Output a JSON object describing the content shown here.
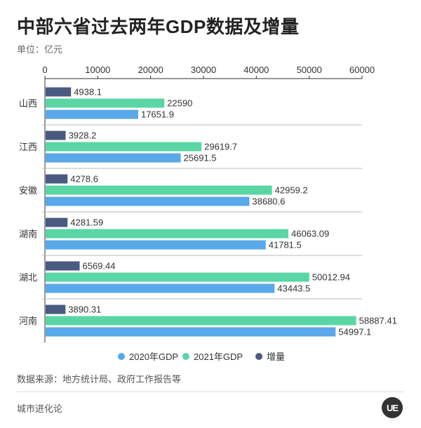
{
  "header": {
    "title": "中部六省过去两年GDP数据及增量",
    "unit": "单位：亿元"
  },
  "footer": {
    "source": "数据来源：地方统计局、政府工作报告等",
    "brand": "城市进化论",
    "logo_text": "UE"
  },
  "colors": {
    "series_2020": "#58a8ea",
    "series_2021": "#5ad6a4",
    "series_increase": "#4a5a80",
    "axis": "#333333",
    "gridline": "#bbbbbb",
    "label": "#333333"
  },
  "chart_data": {
    "type": "bar",
    "orientation": "horizontal",
    "categories": [
      "山西",
      "江西",
      "安徽",
      "湖南",
      "湖北",
      "河南"
    ],
    "series": [
      {
        "name": "增量",
        "values": [
          4938.1,
          3928.2,
          4278.6,
          4281.59,
          6569.44,
          3890.31
        ],
        "labels": [
          "4938.1",
          "3928.2",
          "4278.6",
          "4281.59",
          "6569.44",
          "3890.31"
        ]
      },
      {
        "name": "2021年GDP",
        "values": [
          22590,
          29619.7,
          42959.2,
          46063.09,
          50012.94,
          58887.41
        ],
        "labels": [
          "22590",
          "29619.7",
          "42959.2",
          "46063.09",
          "50012.94",
          "58887.41"
        ]
      },
      {
        "name": "2020年GDP",
        "values": [
          17651.9,
          25691.5,
          38680.6,
          41781.5,
          43443.5,
          54997.1
        ],
        "labels": [
          "17651.9",
          "25691.5",
          "38680.6",
          "41781.5",
          "43443.5",
          "54997.1"
        ]
      }
    ],
    "xlim": [
      0,
      60000
    ],
    "xticks": [
      0,
      10000,
      20000,
      30000,
      40000,
      50000,
      60000
    ],
    "xtick_labels": [
      "0",
      "10000",
      "20000",
      "30000",
      "40000",
      "50000",
      "60000"
    ],
    "legend": [
      {
        "name": "2020年GDP",
        "color": "#58a8ea"
      },
      {
        "name": "2021年GDP",
        "color": "#5ad6a4"
      },
      {
        "name": "增量",
        "color": "#4a5a80"
      }
    ],
    "legend_position": "bottom",
    "axis_position": "top"
  }
}
